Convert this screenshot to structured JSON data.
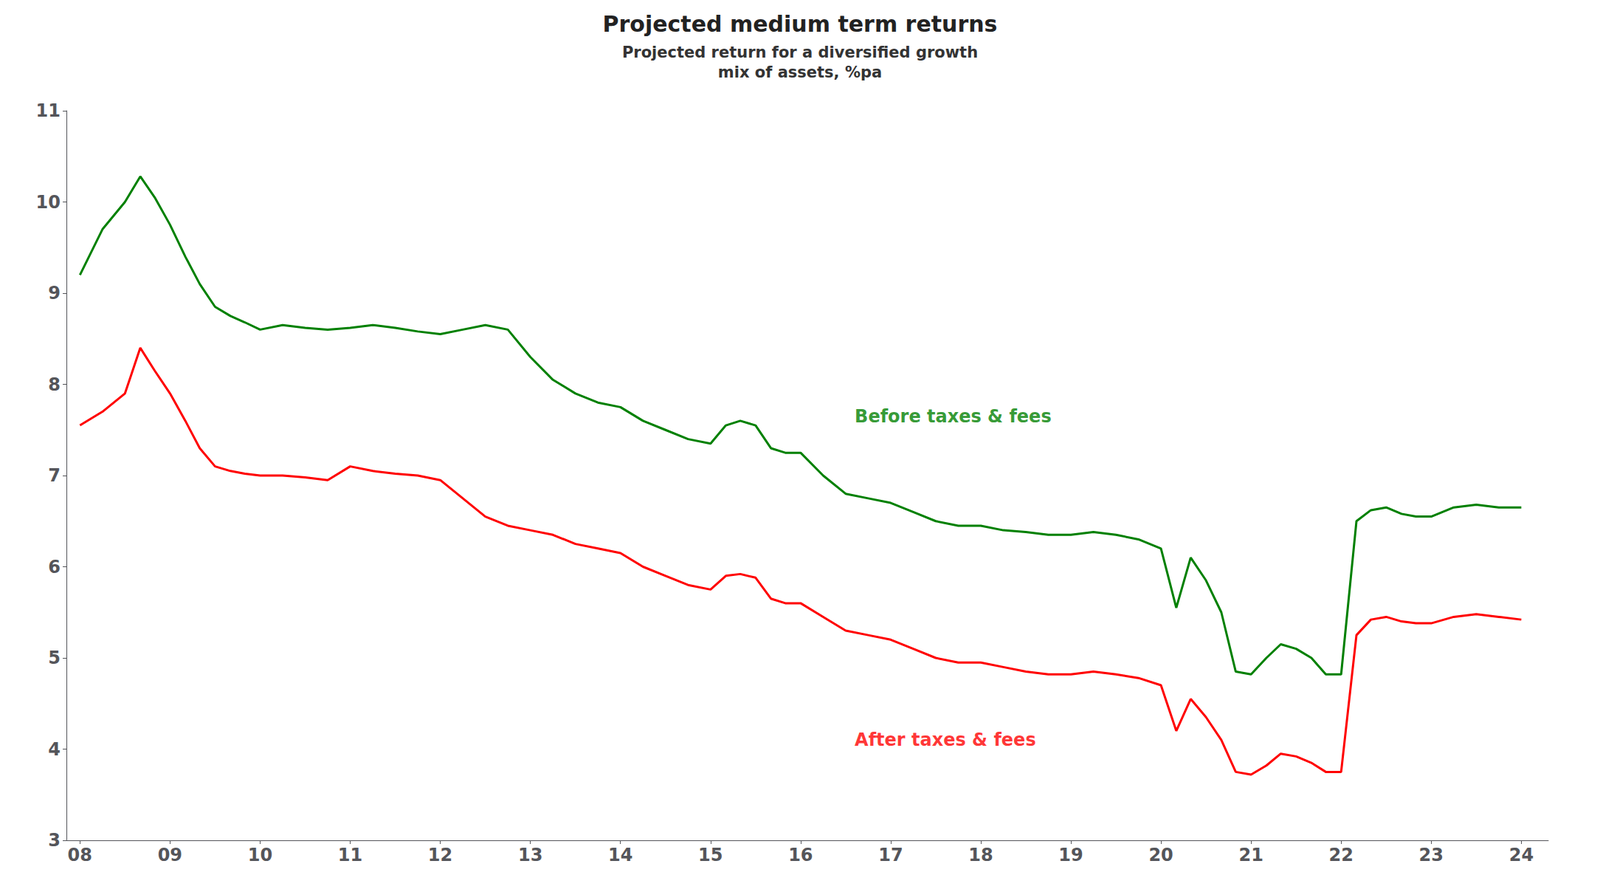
{
  "chart_data": {
    "type": "line",
    "title": "Projected medium term returns",
    "subtitle": "Projected return for a diversified growth\nmix of assets, %pa",
    "xlim": [
      2007.85,
      2024.3
    ],
    "xticks": [
      {
        "value": 2008,
        "label": "08"
      },
      {
        "value": 2009,
        "label": "09"
      },
      {
        "value": 2010,
        "label": "10"
      },
      {
        "value": 2011,
        "label": "11"
      },
      {
        "value": 2012,
        "label": "12"
      },
      {
        "value": 2013,
        "label": "13"
      },
      {
        "value": 2014,
        "label": "14"
      },
      {
        "value": 2015,
        "label": "15"
      },
      {
        "value": 2016,
        "label": "16"
      },
      {
        "value": 2017,
        "label": "17"
      },
      {
        "value": 2018,
        "label": "18"
      },
      {
        "value": 2019,
        "label": "19"
      },
      {
        "value": 2020,
        "label": "20"
      },
      {
        "value": 2021,
        "label": "21"
      },
      {
        "value": 2022,
        "label": "22"
      },
      {
        "value": 2023,
        "label": "23"
      },
      {
        "value": 2024,
        "label": "24"
      }
    ],
    "ylim": [
      3,
      11
    ],
    "yticks": [
      3,
      4,
      5,
      6,
      7,
      8,
      9,
      10,
      11
    ],
    "grid": false,
    "series": [
      {
        "name": "Before taxes & fees",
        "color": "#008000",
        "label_x": 2016.6,
        "label_y": 7.55,
        "x": [
          2008.0,
          2008.25,
          2008.5,
          2008.67,
          2008.83,
          2009.0,
          2009.17,
          2009.33,
          2009.5,
          2009.67,
          2009.83,
          2010.0,
          2010.25,
          2010.5,
          2010.75,
          2011.0,
          2011.25,
          2011.5,
          2011.75,
          2012.0,
          2012.25,
          2012.5,
          2012.75,
          2013.0,
          2013.25,
          2013.5,
          2013.75,
          2014.0,
          2014.25,
          2014.5,
          2014.75,
          2015.0,
          2015.17,
          2015.33,
          2015.5,
          2015.67,
          2015.83,
          2016.0,
          2016.25,
          2016.5,
          2016.75,
          2017.0,
          2017.25,
          2017.5,
          2017.75,
          2018.0,
          2018.25,
          2018.5,
          2018.75,
          2019.0,
          2019.25,
          2019.5,
          2019.75,
          2020.0,
          2020.17,
          2020.33,
          2020.5,
          2020.67,
          2020.83,
          2021.0,
          2021.17,
          2021.33,
          2021.5,
          2021.67,
          2021.83,
          2022.0,
          2022.17,
          2022.33,
          2022.5,
          2022.67,
          2022.83,
          2023.0,
          2023.25,
          2023.5,
          2023.75,
          2024.0
        ],
        "values": [
          9.2,
          9.7,
          10.0,
          10.28,
          10.05,
          9.75,
          9.4,
          9.1,
          8.85,
          8.75,
          8.68,
          8.6,
          8.65,
          8.62,
          8.6,
          8.62,
          8.65,
          8.62,
          8.58,
          8.55,
          8.6,
          8.65,
          8.6,
          8.3,
          8.05,
          7.9,
          7.8,
          7.75,
          7.6,
          7.5,
          7.4,
          7.35,
          7.55,
          7.6,
          7.55,
          7.3,
          7.25,
          7.25,
          7.0,
          6.8,
          6.75,
          6.7,
          6.6,
          6.5,
          6.45,
          6.45,
          6.4,
          6.38,
          6.35,
          6.35,
          6.38,
          6.35,
          6.3,
          6.2,
          5.55,
          6.1,
          5.85,
          5.5,
          4.85,
          4.82,
          5.0,
          5.15,
          5.1,
          5.0,
          4.82,
          4.82,
          6.5,
          6.62,
          6.65,
          6.58,
          6.55,
          6.55,
          6.65,
          6.68,
          6.65,
          6.65
        ]
      },
      {
        "name": "After taxes & fees",
        "color": "#FF0000",
        "label_x": 2016.6,
        "label_y": 4.2,
        "x": [
          2008.0,
          2008.25,
          2008.5,
          2008.67,
          2008.83,
          2009.0,
          2009.17,
          2009.33,
          2009.5,
          2009.67,
          2009.83,
          2010.0,
          2010.25,
          2010.5,
          2010.75,
          2011.0,
          2011.25,
          2011.5,
          2011.75,
          2012.0,
          2012.25,
          2012.5,
          2012.75,
          2013.0,
          2013.25,
          2013.5,
          2013.75,
          2014.0,
          2014.25,
          2014.5,
          2014.75,
          2015.0,
          2015.17,
          2015.33,
          2015.5,
          2015.67,
          2015.83,
          2016.0,
          2016.25,
          2016.5,
          2016.75,
          2017.0,
          2017.25,
          2017.5,
          2017.75,
          2018.0,
          2018.25,
          2018.5,
          2018.75,
          2019.0,
          2019.25,
          2019.5,
          2019.75,
          2020.0,
          2020.17,
          2020.33,
          2020.5,
          2020.67,
          2020.83,
          2021.0,
          2021.17,
          2021.33,
          2021.5,
          2021.67,
          2021.83,
          2022.0,
          2022.17,
          2022.33,
          2022.5,
          2022.67,
          2022.83,
          2023.0,
          2023.25,
          2023.5,
          2023.75,
          2024.0
        ],
        "values": [
          7.55,
          7.7,
          7.9,
          8.4,
          8.15,
          7.9,
          7.6,
          7.3,
          7.1,
          7.05,
          7.02,
          7.0,
          7.0,
          6.98,
          6.95,
          7.1,
          7.05,
          7.02,
          7.0,
          6.95,
          6.75,
          6.55,
          6.45,
          6.4,
          6.35,
          6.25,
          6.2,
          6.15,
          6.0,
          5.9,
          5.8,
          5.75,
          5.9,
          5.92,
          5.88,
          5.65,
          5.6,
          5.6,
          5.45,
          5.3,
          5.25,
          5.2,
          5.1,
          5.0,
          4.95,
          4.95,
          4.9,
          4.85,
          4.82,
          4.82,
          4.85,
          4.82,
          4.78,
          4.7,
          4.2,
          4.55,
          4.35,
          4.1,
          3.75,
          3.72,
          3.82,
          3.95,
          3.92,
          3.85,
          3.75,
          3.75,
          5.25,
          5.42,
          5.45,
          5.4,
          5.38,
          5.38,
          5.45,
          5.48,
          5.45,
          5.42
        ]
      }
    ]
  }
}
